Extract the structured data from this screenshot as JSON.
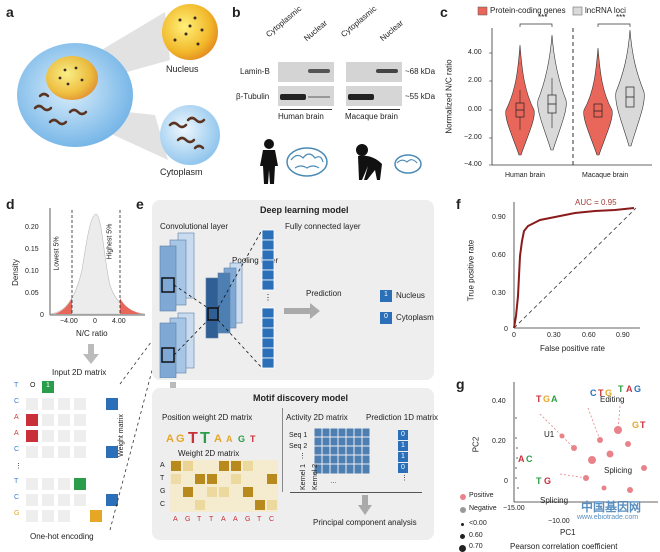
{
  "panel_labels": [
    "a",
    "b",
    "c",
    "d",
    "e",
    "f",
    "g"
  ],
  "panel_a": {
    "nucleus_label": "Nucleus",
    "cytoplasm_label": "Cytoplasm"
  },
  "panel_b": {
    "columns": [
      "Cytoplasmic",
      "Nuclear",
      "Cytoplasmic",
      "Nuclear"
    ],
    "row_labels": [
      "Lamin-B",
      "β-Tubulin"
    ],
    "sizes": [
      "~68 kDa",
      "~55 kDa"
    ],
    "group_labels": [
      "Human brain",
      "Macaque brain"
    ]
  },
  "panel_c": {
    "legend": [
      "Protein-coding genes",
      "lncRNA loci"
    ],
    "colors": {
      "protein": "#e8675a",
      "lnc": "#d9d9d9"
    },
    "ylabel": "Normalized N/C ratio",
    "yticks": [
      "4.00",
      "2.00",
      "0.00",
      "−2.00",
      "−4.00"
    ],
    "groups": [
      "Human brain",
      "Macaque brain"
    ],
    "sig": [
      "***",
      "***"
    ]
  },
  "panel_d": {
    "ylabel": "Density",
    "yticks": [
      "0.20",
      "0.15",
      "0.10",
      "0.05",
      "0"
    ],
    "xticks": [
      "−4.00",
      "0",
      "4.00"
    ],
    "xlabel": "N/C ratio",
    "low_label": "Lowest 5%",
    "high_label": "Highest 5%",
    "matrix_title": "Input 2D matrix",
    "matrix_rows": [
      "T",
      "C",
      "A",
      "A",
      "C",
      "⋮",
      "T",
      "C",
      "G"
    ],
    "matrix_side": "Weight matrix",
    "matrix_top": "O",
    "matrix_one": "1",
    "matrix_footer": "One-hot encoding"
  },
  "panel_e": {
    "dl_title": "Deep learning model",
    "conv": "Convolutional layer",
    "pool": "Pooling layer",
    "fc": "Fully connected layer",
    "prediction": "Prediction",
    "out1_val": "1",
    "out1_label": "Nucleus",
    "out2_val": "0",
    "out2_label": "Cytoplasm",
    "motif_title": "Motif discovery model",
    "pwm": "Position weight 2D matrix",
    "weight_title": "Weight 2D matrix",
    "weight_rows": [
      "A",
      "T",
      "G",
      "C"
    ],
    "weight_seq": [
      "A",
      "G",
      "T",
      "T",
      "A",
      "A",
      "G",
      "T",
      "C"
    ],
    "activity": "Activity 2D matrix",
    "seqs": [
      "Seq 1",
      "Seq 2",
      "⋮"
    ],
    "kernels": [
      "Kernel 1",
      "Kernel 2"
    ],
    "pred1d": "Prediction 1D matrix",
    "pred_vals": [
      "0",
      "1",
      "1",
      "0",
      "⋮"
    ],
    "pca": "Principal component analysis"
  },
  "panel_f": {
    "ylabel": "True positive rate",
    "xlabel": "False positive rate",
    "auc": "AUC = 0.95",
    "yticks": [
      "0.90",
      "0.60",
      "0.30",
      "0"
    ],
    "xticks": [
      "0",
      "0.30",
      "0.60",
      "0.90"
    ]
  },
  "panel_g": {
    "ylabel": "PC2",
    "xlabel": "PC1",
    "yticks": [
      "0.40",
      "0.20",
      "0"
    ],
    "xticks": [
      "−15.00",
      "−10.00"
    ],
    "labels": [
      "U1",
      "Editing",
      "Splicing",
      "Splicing"
    ],
    "legend_pos": "Positive",
    "legend_neg": "Negative",
    "size_legend": [
      "<0.00",
      "0.60",
      "0.70"
    ],
    "size_title": "Pearson correlation coefficient"
  },
  "watermark": {
    "cn": "中国基因网",
    "url": "www.ebiotrade.com"
  }
}
